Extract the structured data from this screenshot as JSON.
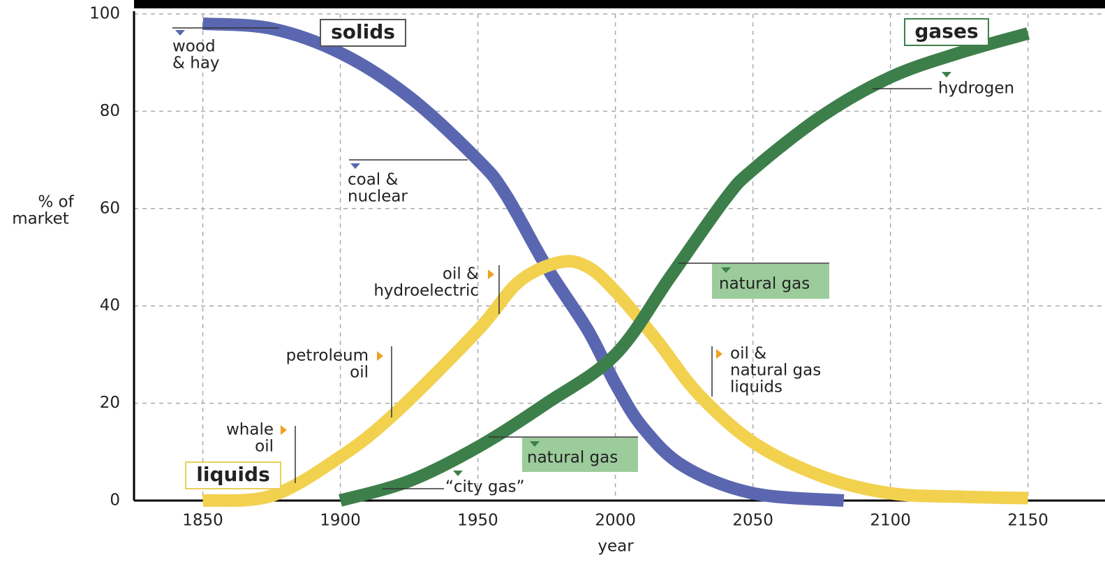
{
  "chart_data": {
    "type": "line",
    "ylabel": [
      "% of",
      "market"
    ],
    "xlabel": "year",
    "xlim": [
      1825,
      2178
    ],
    "ylim": [
      0,
      100
    ],
    "xticks": [
      1850,
      1900,
      1950,
      2000,
      2050,
      2100,
      2150
    ],
    "yticks": [
      0,
      20,
      40,
      60,
      80,
      100
    ],
    "grid": true,
    "series": [
      {
        "name": "solids",
        "color": "#5a67b0",
        "x": [
          1850,
          1875,
          1900,
          1925,
          1950,
          1960,
          1975,
          1990,
          2000,
          2010,
          2025,
          2050,
          2083
        ],
        "values": [
          98,
          97,
          92,
          83,
          70,
          63,
          48,
          35,
          24,
          15,
          7,
          1.5,
          0
        ]
      },
      {
        "name": "liquids",
        "color": "#f2d14f",
        "x": [
          1850,
          1875,
          1900,
          1920,
          1950,
          1965,
          1980,
          1990,
          2000,
          2015,
          2030,
          2050,
          2075,
          2100,
          2125,
          2150
        ],
        "values": [
          0,
          1,
          9,
          18,
          35,
          45,
          49,
          48,
          43,
          33,
          22,
          12,
          5,
          1.5,
          0.8,
          0.5
        ]
      },
      {
        "name": "gases",
        "color": "#3d7f4a",
        "x": [
          1900,
          1925,
          1950,
          1975,
          2000,
          2020,
          2040,
          2050,
          2075,
          2100,
          2125,
          2150
        ],
        "values": [
          0,
          4,
          11,
          20,
          30,
          46,
          62,
          68,
          79,
          87,
          92,
          96
        ]
      }
    ],
    "annotations": [
      {
        "lines": [
          "wood",
          "& hay"
        ]
      },
      {
        "lines": [
          "coal &",
          "nuclear"
        ]
      },
      {
        "lines": [
          "oil &",
          "hydroelectric"
        ]
      },
      {
        "lines": [
          "petroleum",
          "oil"
        ]
      },
      {
        "lines": [
          "whale",
          "oil"
        ]
      },
      {
        "lines": [
          "natural gas"
        ]
      },
      {
        "lines": [
          "natural gas"
        ]
      },
      {
        "lines": [
          "“city gas”"
        ]
      },
      {
        "lines": [
          "oil &",
          "natural gas",
          "liquids"
        ]
      },
      {
        "lines": [
          "hydrogen"
        ]
      }
    ]
  }
}
